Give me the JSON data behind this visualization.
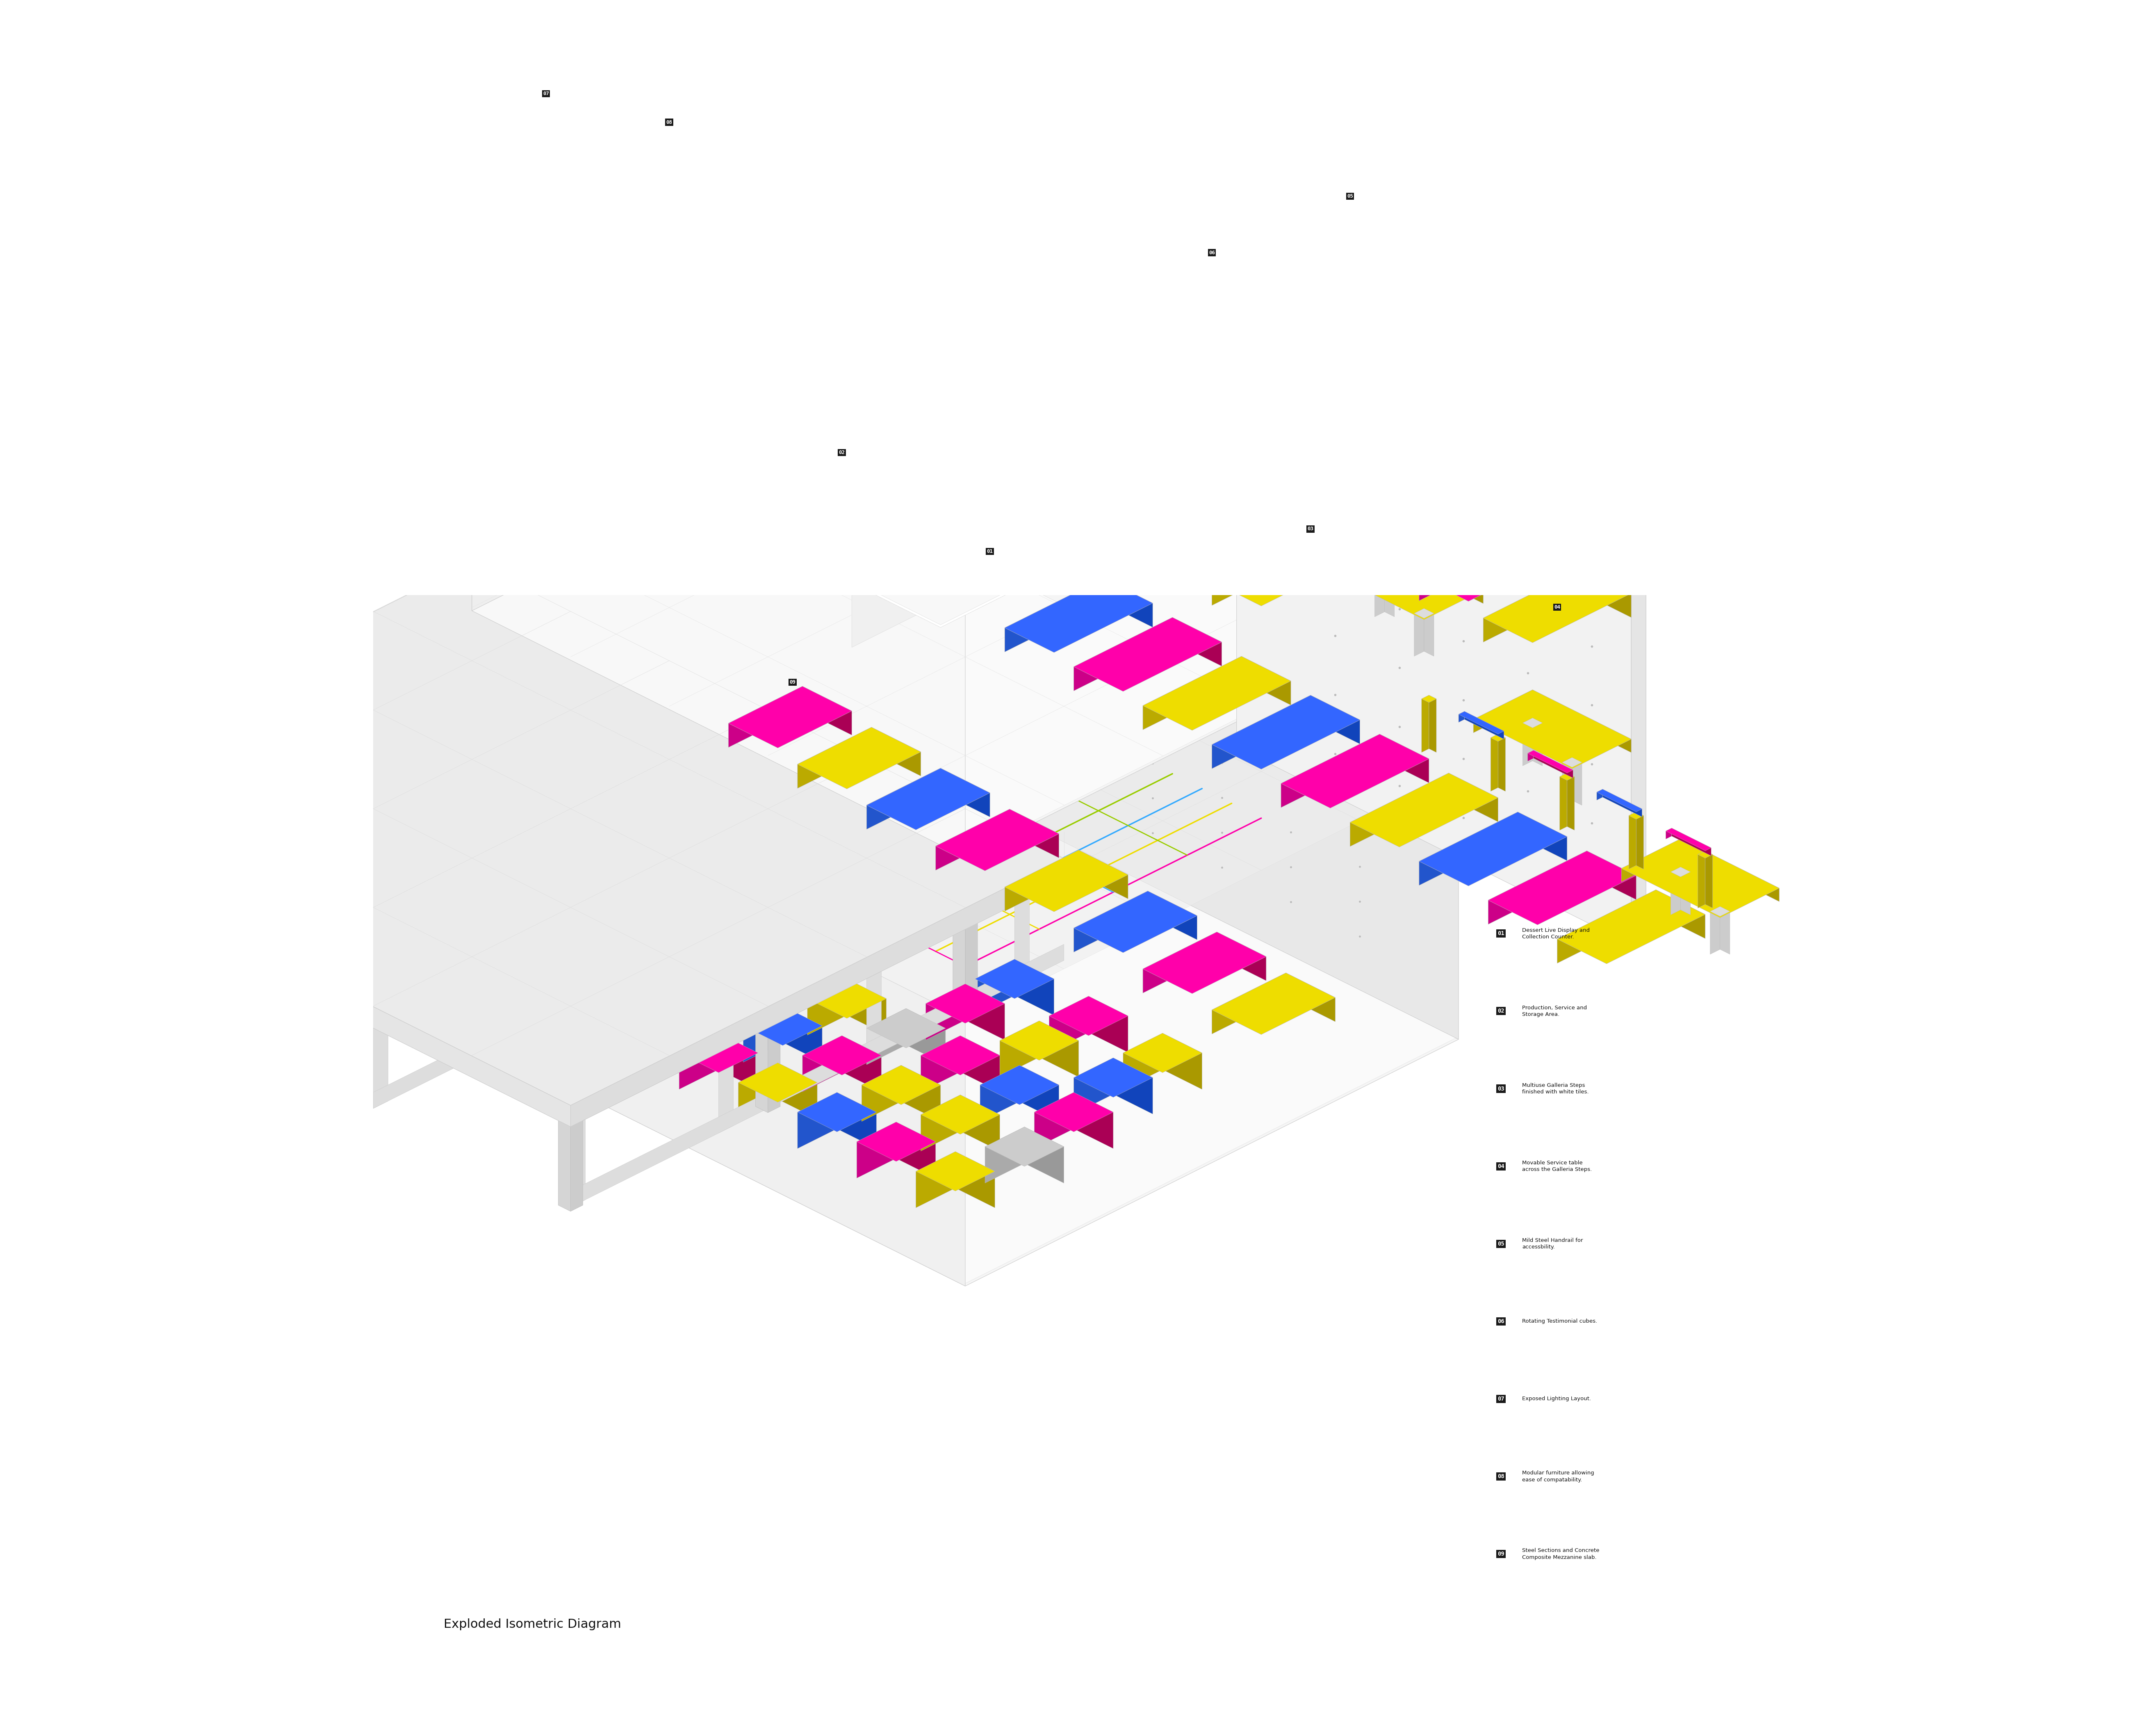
{
  "title": "Exploded Isometric Diagram",
  "background_color": "#ffffff",
  "legend_items": [
    {
      "num": "01",
      "text": "Dessert Live Display and\nCollection Counter."
    },
    {
      "num": "02",
      "text": "Production, Service and\nStorage Area."
    },
    {
      "num": "03",
      "text": "Multiuse Galleria Steps\nfinished with white tiles."
    },
    {
      "num": "04",
      "text": "Movable Service table\nacross the Galleria Steps."
    },
    {
      "num": "05",
      "text": "Mild Steel Handrail for\naccessbility."
    },
    {
      "num": "06",
      "text": "Rotating Testimonial cubes."
    },
    {
      "num": "07",
      "text": "Exposed Lighting Layout."
    },
    {
      "num": "08",
      "text": "Modular furniture allowing\nease of compatability."
    },
    {
      "num": "09",
      "text": "Steel Sections and Concrete\nComposite Mezzanine slab."
    }
  ],
  "colors": {
    "magenta": "#FF00AA",
    "yellow": "#EEDD00",
    "blue": "#3366FF",
    "gray_cube": "#BBBBBB",
    "wall_left": "#F0F0F0",
    "wall_right": "#E0E0E0",
    "wall_back": "#E8E8E8",
    "floor_top": "#F5F5F5",
    "floor_int": "#FAFAFA",
    "stair_white": "#FFFFFF",
    "stair_side": "#EEEEEE",
    "panel_face": "#F0F0F0",
    "mez_top": "#EBEBEB",
    "dashed": "#AAAAAA",
    "grid": "#CCCCCC",
    "label_bg": "#1a1a1a",
    "pipe_green": "#99CC00",
    "pipe_blue": "#33AAFF"
  }
}
